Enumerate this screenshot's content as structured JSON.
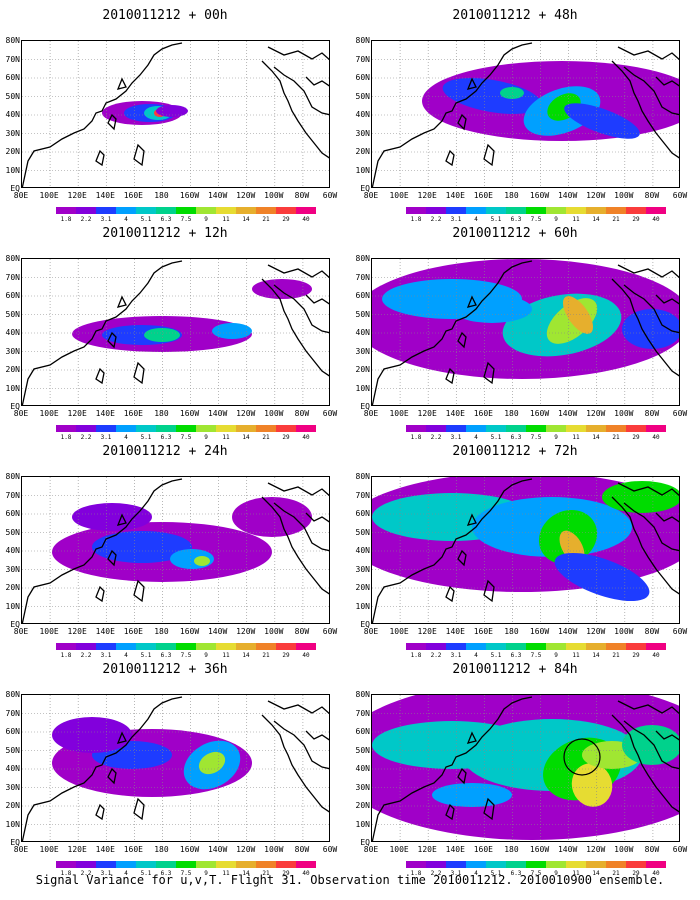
{
  "panels": [
    {
      "title": "2010011212 + 00h",
      "lead": "00h"
    },
    {
      "title": "2010011212 + 48h",
      "lead": "48h"
    },
    {
      "title": "2010011212 + 12h",
      "lead": "12h"
    },
    {
      "title": "2010011212 + 60h",
      "lead": "60h"
    },
    {
      "title": "2010011212 + 24h",
      "lead": "24h"
    },
    {
      "title": "2010011212 + 72h",
      "lead": "72h"
    },
    {
      "title": "2010011212 + 36h",
      "lead": "36h"
    },
    {
      "title": "2010011212 + 84h",
      "lead": "84h"
    }
  ],
  "lat_labels": [
    "80N",
    "70N",
    "60N",
    "50N",
    "40N",
    "30N",
    "20N",
    "10N",
    "EQ"
  ],
  "lon_labels": [
    "80E",
    "100E",
    "120E",
    "140E",
    "160E",
    "180",
    "160W",
    "140W",
    "120W",
    "100W",
    "80W",
    "60W"
  ],
  "colorbar": {
    "values": [
      "1.8",
      "2.2",
      "3.1",
      "4",
      "5.1",
      "6.3",
      "7.5",
      "9",
      "11",
      "14",
      "21",
      "29",
      "40"
    ],
    "colors": [
      "#a000c8",
      "#8200dc",
      "#1e3cff",
      "#00a0ff",
      "#00c8c8",
      "#00d28c",
      "#00dc00",
      "#a0e632",
      "#e6dc32",
      "#e6af2d",
      "#f08228",
      "#fa3c3c",
      "#f00082"
    ]
  },
  "footer": "Signal Variance for u,v,T. Flight 31. Observation time 2010011212. 2010010900 ensemble."
}
